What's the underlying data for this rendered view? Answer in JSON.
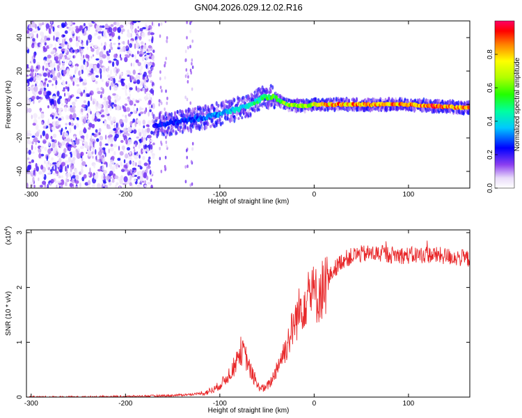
{
  "title": "GN04.2026.029.12.02.R16",
  "chart_data": [
    {
      "type": "heatmap",
      "name": "spectrogram",
      "xlabel": "Height of straight line (km)",
      "ylabel": "Frequency (Hz)",
      "xlim": [
        -305,
        165
      ],
      "ylim": [
        -50,
        50
      ],
      "xticks": [
        -300,
        -200,
        -100,
        0,
        100
      ],
      "xtick_labels": [
        "-300",
        "-200",
        "-100",
        "0",
        "100"
      ],
      "yticks": [
        -40,
        -20,
        0,
        20,
        40
      ],
      "ytick_labels": [
        "-40",
        "-20",
        "0",
        "20",
        "40"
      ],
      "colorbar": {
        "label": "Normalized spectral amplitude",
        "range": [
          0,
          1
        ],
        "ticks": [
          0.0,
          0.2,
          0.4,
          0.6,
          0.8
        ],
        "tick_labels": [
          "0.0",
          "0.2",
          "0.4",
          "0.6",
          "0.8"
        ]
      },
      "noise_region_x": [
        -305,
        -170
      ],
      "ridge": {
        "x": [
          -170,
          -150,
          -130,
          -110,
          -90,
          -70,
          -55,
          -45,
          -30,
          -10,
          0,
          20,
          50,
          80,
          100,
          130,
          160,
          165
        ],
        "y": [
          -13,
          -11,
          -9,
          -7,
          -4,
          -1,
          4,
          5,
          0,
          -1,
          0,
          0,
          0,
          0,
          0,
          -1,
          -2,
          -2
        ],
        "amplitude": [
          0.25,
          0.28,
          0.3,
          0.35,
          0.4,
          0.45,
          0.55,
          0.6,
          0.65,
          0.75,
          0.8,
          0.9,
          0.92,
          0.95,
          0.95,
          0.95,
          0.9,
          0.9
        ]
      }
    },
    {
      "type": "line",
      "name": "snr",
      "xlabel": "Height of straight line (km)",
      "ylabel": "SNR (10 * v/v)",
      "y_multiplier": "(x10",
      "y_multiplier_exp": "4",
      "y_multiplier_close": ")",
      "xlim": [
        -305,
        165
      ],
      "ylim": [
        0,
        3.05
      ],
      "xticks": [
        -300,
        -200,
        -100,
        0,
        100
      ],
      "xtick_labels": [
        "-300",
        "-200",
        "-100",
        "0",
        "100"
      ],
      "yticks": [
        0,
        1,
        2,
        3
      ],
      "ytick_labels": [
        "0",
        "1",
        "2",
        "3"
      ],
      "color": "#e8282a",
      "series": [
        {
          "name": "SNR",
          "x": [
            -305,
            -250,
            -200,
            -150,
            -130,
            -115,
            -105,
            -95,
            -85,
            -78,
            -73,
            -68,
            -60,
            -52,
            -45,
            -38,
            -30,
            -22,
            -15,
            -8,
            -3,
            3,
            10,
            20,
            30,
            45,
            60,
            80,
            100,
            120,
            140,
            165
          ],
          "y": [
            0.0,
            0.0,
            0.01,
            0.03,
            0.05,
            0.08,
            0.15,
            0.3,
            0.55,
            0.85,
            0.75,
            0.5,
            0.2,
            0.15,
            0.3,
            0.6,
            0.9,
            1.3,
            1.6,
            1.85,
            1.9,
            1.85,
            2.0,
            2.3,
            2.5,
            2.6,
            2.62,
            2.6,
            2.58,
            2.6,
            2.57,
            2.52
          ]
        }
      ]
    }
  ]
}
